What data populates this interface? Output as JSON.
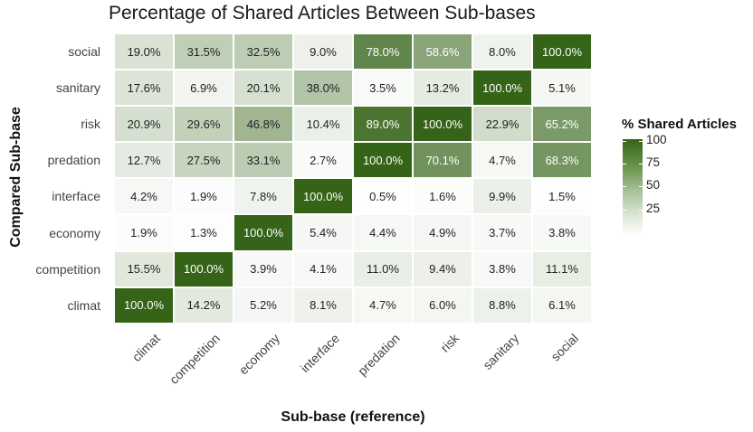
{
  "chart_data": {
    "type": "heatmap",
    "title": "Percentage of Shared Articles Between Sub-bases",
    "xlabel": "Sub-base (reference)",
    "ylabel": "Compared Sub-base",
    "x_categories": [
      "climat",
      "competition",
      "economy",
      "interface",
      "predation",
      "risk",
      "sanitary",
      "social"
    ],
    "y_categories_top_to_bottom": [
      "social",
      "sanitary",
      "risk",
      "predation",
      "interface",
      "economy",
      "competition",
      "climat"
    ],
    "values": [
      [
        19.0,
        31.5,
        32.5,
        9.0,
        78.0,
        58.6,
        8.0,
        100.0
      ],
      [
        17.6,
        6.9,
        20.1,
        38.0,
        3.5,
        13.2,
        100.0,
        5.1
      ],
      [
        20.9,
        29.6,
        46.8,
        10.4,
        89.0,
        100.0,
        22.9,
        65.2
      ],
      [
        12.7,
        27.5,
        33.1,
        2.7,
        100.0,
        70.1,
        4.7,
        68.3
      ],
      [
        4.2,
        1.9,
        7.8,
        100.0,
        0.5,
        1.6,
        9.9,
        1.5
      ],
      [
        1.9,
        1.3,
        100.0,
        5.4,
        4.4,
        4.9,
        3.7,
        3.8
      ],
      [
        15.5,
        100.0,
        3.9,
        4.1,
        11.0,
        9.4,
        3.8,
        11.1
      ],
      [
        100.0,
        14.2,
        5.2,
        8.1,
        4.7,
        6.0,
        8.8,
        6.1
      ]
    ],
    "legend": {
      "title": "% Shared Articles",
      "ticks": [
        "100",
        "75",
        "50",
        "25"
      ],
      "range": [
        0,
        100
      ],
      "low_color": "#ffffff",
      "high_color": "#356418"
    }
  }
}
